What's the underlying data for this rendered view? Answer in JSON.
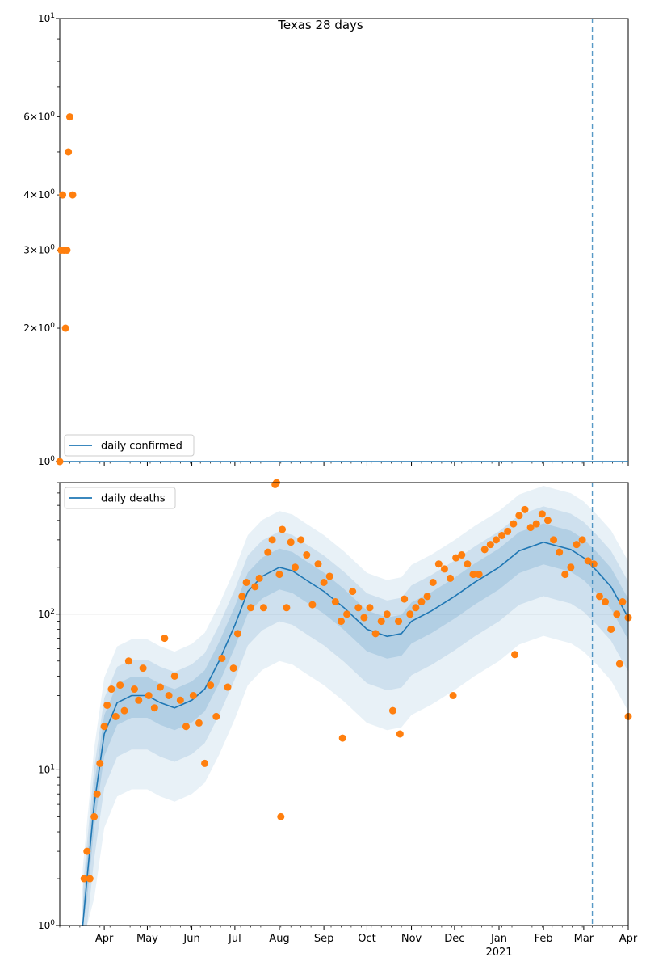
{
  "figure": {
    "title": "Texas 28 days"
  },
  "colors": {
    "line": "#1f77b4",
    "points": "#ff7f0e",
    "band": "#1f77b4",
    "grid": "#b0b0b0",
    "vline": "#1f77b4"
  },
  "chart_data": [
    {
      "type": "scatter",
      "title": "Texas 28 days",
      "yscale": "log",
      "ylim": [
        1,
        10
      ],
      "y_tick_labels": [
        "10^0",
        "2×10^0",
        "3×10^0",
        "4×10^0",
        "6×10^0",
        "10^1"
      ],
      "legend": "lower-left",
      "series": [
        {
          "name": "daily confirmed",
          "kind": "line",
          "values": [
            1,
            1
          ]
        },
        {
          "kind": "points",
          "x": [
            "2020-03-01",
            "2020-03-02",
            "2020-03-03",
            "2020-03-04",
            "2020-03-05",
            "2020-03-06",
            "2020-03-07",
            "2020-03-08",
            "2020-03-10"
          ],
          "y": [
            1,
            3,
            4,
            3,
            2,
            3,
            5,
            6,
            4
          ]
        }
      ],
      "vertical_marker": "2021-03-07"
    },
    {
      "type": "scatter",
      "yscale": "log",
      "ylim": [
        1,
        700
      ],
      "y_tick_labels": [
        "10^0",
        "10^1",
        "10^2"
      ],
      "grid": true,
      "legend": "top-left",
      "x_tick_labels": [
        "Apr",
        "May",
        "Jun",
        "Jul",
        "Aug",
        "Sep",
        "Oct",
        "Nov",
        "Dec",
        "Jan",
        "Feb",
        "Mar",
        "Apr"
      ],
      "x_year_label": "2021",
      "series_name": "daily deaths",
      "trend": {
        "x": [
          "2020-03-17",
          "2020-03-20",
          "2020-03-25",
          "2020-04-01",
          "2020-04-10",
          "2020-04-20",
          "2020-05-01",
          "2020-05-10",
          "2020-05-20",
          "2020-06-01",
          "2020-06-10",
          "2020-06-20",
          "2020-07-01",
          "2020-07-10",
          "2020-07-20",
          "2020-08-01",
          "2020-08-10",
          "2020-08-20",
          "2020-09-01",
          "2020-09-15",
          "2020-10-01",
          "2020-10-15",
          "2020-10-25",
          "2020-11-01",
          "2020-11-15",
          "2020-12-01",
          "2020-12-15",
          "2021-01-01",
          "2021-01-15",
          "2021-02-01",
          "2021-02-10",
          "2021-02-20",
          "2021-03-01",
          "2021-03-10",
          "2021-03-20",
          "2021-04-01"
        ],
        "y": [
          1,
          2,
          6,
          17,
          27,
          30,
          30,
          27,
          25,
          28,
          33,
          50,
          85,
          140,
          175,
          200,
          190,
          165,
          140,
          110,
          80,
          72,
          75,
          90,
          105,
          130,
          160,
          200,
          255,
          290,
          275,
          260,
          230,
          190,
          150,
          95
        ]
      },
      "points": {
        "x": [
          "2020-03-18",
          "2020-03-20",
          "2020-03-22",
          "2020-03-25",
          "2020-03-27",
          "2020-03-29",
          "2020-04-01",
          "2020-04-03",
          "2020-04-06",
          "2020-04-09",
          "2020-04-12",
          "2020-04-15",
          "2020-04-18",
          "2020-04-22",
          "2020-04-25",
          "2020-04-28",
          "2020-05-02",
          "2020-05-06",
          "2020-05-10",
          "2020-05-13",
          "2020-05-16",
          "2020-05-20",
          "2020-05-24",
          "2020-05-28",
          "2020-06-02",
          "2020-06-06",
          "2020-06-10",
          "2020-06-14",
          "2020-06-18",
          "2020-06-22",
          "2020-06-26",
          "2020-06-30",
          "2020-07-03",
          "2020-07-06",
          "2020-07-09",
          "2020-07-12",
          "2020-07-15",
          "2020-07-18",
          "2020-07-21",
          "2020-07-24",
          "2020-07-27",
          "2020-07-29",
          "2020-08-01",
          "2020-08-03",
          "2020-08-06",
          "2020-08-09",
          "2020-08-12",
          "2020-08-16",
          "2020-08-20",
          "2020-08-24",
          "2020-08-28",
          "2020-09-01",
          "2020-09-05",
          "2020-09-09",
          "2020-09-13",
          "2020-09-17",
          "2020-09-21",
          "2020-09-25",
          "2020-09-29",
          "2020-10-03",
          "2020-10-07",
          "2020-10-11",
          "2020-10-15",
          "2020-10-19",
          "2020-10-23",
          "2020-10-27",
          "2020-10-31",
          "2020-11-04",
          "2020-11-08",
          "2020-11-12",
          "2020-11-16",
          "2020-11-20",
          "2020-11-24",
          "2020-11-28",
          "2020-12-02",
          "2020-12-06",
          "2020-12-10",
          "2020-12-14",
          "2020-12-18",
          "2020-12-22",
          "2020-12-26",
          "2020-12-30",
          "2021-01-03",
          "2021-01-07",
          "2021-01-11",
          "2021-01-15",
          "2021-01-19",
          "2021-01-23",
          "2021-01-27",
          "2021-01-31",
          "2021-02-04",
          "2021-02-08",
          "2021-02-12",
          "2021-02-16",
          "2021-02-20",
          "2021-02-24",
          "2021-02-28",
          "2021-03-04",
          "2021-03-08",
          "2021-03-12",
          "2021-03-16",
          "2021-03-20",
          "2021-03-24",
          "2021-03-28",
          "2021-04-01",
          "2020-07-30",
          "2020-08-02",
          "2020-09-14",
          "2020-10-24",
          "2020-11-30",
          "2021-01-12",
          "2021-03-26",
          "2021-04-01"
        ],
        "y": [
          2,
          3,
          2,
          5,
          7,
          11,
          19,
          26,
          33,
          22,
          35,
          24,
          50,
          33,
          28,
          45,
          30,
          25,
          34,
          70,
          30,
          40,
          28,
          19,
          30,
          20,
          11,
          35,
          22,
          52,
          34,
          45,
          75,
          130,
          160,
          110,
          150,
          170,
          110,
          250,
          300,
          680,
          180,
          350,
          110,
          290,
          200,
          300,
          240,
          115,
          210,
          160,
          175,
          120,
          90,
          100,
          140,
          110,
          95,
          110,
          75,
          90,
          100,
          24,
          90,
          125,
          100,
          110,
          120,
          130,
          160,
          210,
          195,
          170,
          230,
          240,
          210,
          180,
          180,
          260,
          280,
          300,
          320,
          340,
          380,
          430,
          470,
          360,
          380,
          440,
          400,
          300,
          250,
          180,
          200,
          280,
          300,
          220,
          210,
          130,
          120,
          80,
          100,
          120,
          95,
          750,
          5,
          16,
          17,
          30,
          55,
          48,
          22
        ]
      },
      "vertical_marker": "2021-03-07"
    }
  ]
}
